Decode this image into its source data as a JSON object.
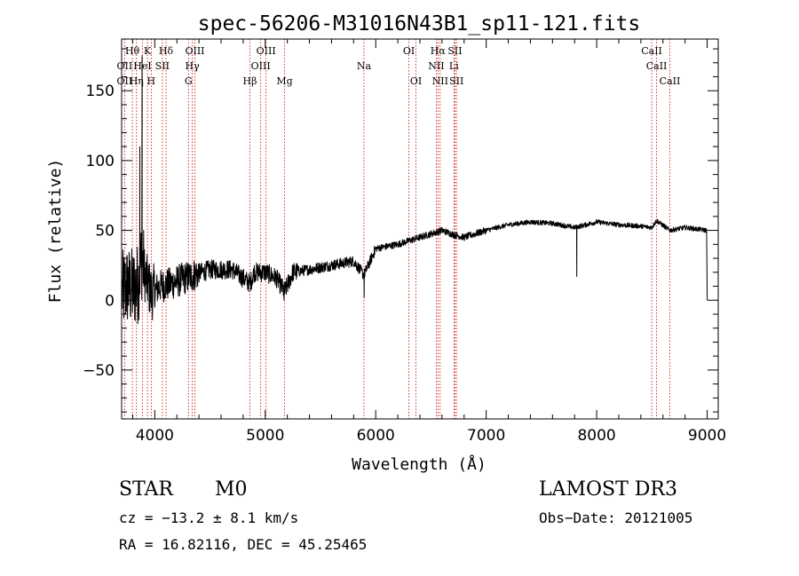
{
  "chart_data": {
    "type": "line",
    "title": "spec-56206-M31016N43B1_sp11-121.fits",
    "xlabel": "Wavelength (Å)",
    "ylabel": "Flux (relative)",
    "xlim": [
      3700,
      9100
    ],
    "ylim": [
      -85,
      187
    ],
    "xticks": [
      4000,
      5000,
      6000,
      7000,
      8000,
      9000
    ],
    "xtick_labels": [
      "4000",
      "5000",
      "6000",
      "7000",
      "8000",
      "9000"
    ],
    "yticks": [
      -50,
      0,
      50,
      100,
      150
    ],
    "ytick_labels": [
      "−50",
      "0",
      "50",
      "100",
      "150"
    ],
    "grid": false,
    "series": [
      {
        "name": "flux",
        "anchors": [
          [
            3700,
            5
          ],
          [
            3750,
            10
          ],
          [
            3800,
            8
          ],
          [
            3850,
            12
          ],
          [
            3880,
            30
          ],
          [
            3920,
            15
          ],
          [
            3970,
            5
          ],
          [
            4050,
            10
          ],
          [
            4150,
            12
          ],
          [
            4250,
            15
          ],
          [
            4350,
            18
          ],
          [
            4500,
            22
          ],
          [
            4700,
            22
          ],
          [
            4862,
            12
          ],
          [
            4900,
            20
          ],
          [
            5000,
            20
          ],
          [
            5100,
            16
          ],
          [
            5175,
            6
          ],
          [
            5250,
            20
          ],
          [
            5400,
            22
          ],
          [
            5600,
            25
          ],
          [
            5800,
            28
          ],
          [
            5893,
            18
          ],
          [
            6000,
            37
          ],
          [
            6200,
            40
          ],
          [
            6400,
            45
          ],
          [
            6600,
            50
          ],
          [
            6700,
            47
          ],
          [
            6800,
            45
          ],
          [
            7000,
            50
          ],
          [
            7200,
            54
          ],
          [
            7400,
            56
          ],
          [
            7600,
            55
          ],
          [
            7800,
            52
          ],
          [
            8000,
            56
          ],
          [
            8200,
            54
          ],
          [
            8400,
            53
          ],
          [
            8498,
            52
          ],
          [
            8542,
            57
          ],
          [
            8662,
            50
          ],
          [
            8800,
            52
          ],
          [
            9000,
            50
          ]
        ],
        "features": [
          {
            "x": 3885,
            "y": 175
          },
          {
            "x": 3865,
            "y": 110
          },
          {
            "x": 7820,
            "y": 17
          },
          {
            "x": 5895,
            "y": 2
          },
          {
            "x": 5170,
            "y": 0
          },
          {
            "x": 9000,
            "y": 0
          }
        ]
      }
    ],
    "line_markers": [
      {
        "label": "Hθ",
        "x": 3797,
        "row": 0
      },
      {
        "label": "K",
        "x": 3934,
        "row": 0
      },
      {
        "label": "Hδ",
        "x": 4102,
        "row": 0
      },
      {
        "label": "OIII",
        "x": 4363,
        "row": 0
      },
      {
        "label": "OIII",
        "x": 5007,
        "row": 0
      },
      {
        "label": "OI",
        "x": 6300,
        "row": 0
      },
      {
        "label": "Hα",
        "x": 6563,
        "row": 0
      },
      {
        "label": "SII",
        "x": 6717,
        "row": 0
      },
      {
        "label": "CaII",
        "x": 8498,
        "row": 0
      },
      {
        "label": "OII",
        "x": 3727,
        "row": 1
      },
      {
        "label": "HeI",
        "x": 3889,
        "row": 1
      },
      {
        "label": "SII",
        "x": 4069,
        "row": 1
      },
      {
        "label": "Hγ",
        "x": 4340,
        "row": 1
      },
      {
        "label": "OIII",
        "x": 4959,
        "row": 1
      },
      {
        "label": "Na",
        "x": 5893,
        "row": 1
      },
      {
        "label": "NII",
        "x": 6548,
        "row": 1
      },
      {
        "label": "Li",
        "x": 6708,
        "row": 1
      },
      {
        "label": "CaII",
        "x": 8542,
        "row": 1
      },
      {
        "label": "OII",
        "x": 3727,
        "row": 2
      },
      {
        "label": "Hη",
        "x": 3835,
        "row": 2
      },
      {
        "label": "H",
        "x": 3968,
        "row": 2
      },
      {
        "label": "G",
        "x": 4305,
        "row": 2
      },
      {
        "label": "Hβ",
        "x": 4861,
        "row": 2
      },
      {
        "label": "Mg",
        "x": 5175,
        "row": 2
      },
      {
        "label": "OI",
        "x": 6364,
        "row": 2
      },
      {
        "label": "NII",
        "x": 6583,
        "row": 2
      },
      {
        "label": "SII",
        "x": 6731,
        "row": 2
      },
      {
        "label": "CaII",
        "x": 8662,
        "row": 2
      }
    ]
  },
  "info": {
    "class": "STAR",
    "subclass": "M0",
    "survey": "LAMOST DR3",
    "cz": "cz = −13.2 ± 8.1 km/s",
    "obs_date": "Obs−Date: 20121005",
    "coords": "RA =  16.82116, DEC =  45.25465"
  },
  "colors": {
    "axis": "#000000",
    "line": "#000000",
    "marker": "#cc0000"
  }
}
